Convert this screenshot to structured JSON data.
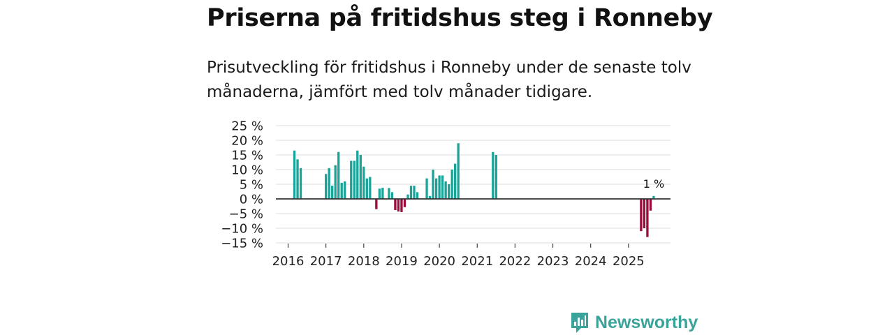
{
  "header": {
    "title": "Priserna på fritidshus steg i Ronneby",
    "subtitle": "Prisutveckling för fritidshus i Ronneby under de senaste tolv månaderna, jämfört med tolv månader tidigare."
  },
  "brand": {
    "name": "Newsworthy",
    "icon": "newsworthy-logo-icon",
    "color": "#3aa39a"
  },
  "colors": {
    "positive": "#1aa398",
    "negative": "#9c0a3e",
    "grid": "#dddddd",
    "zero_line": "#333333"
  },
  "chart_data": {
    "type": "bar",
    "title": "Priserna på fritidshus steg i Ronneby",
    "xlabel": "",
    "ylabel": "",
    "ylim": [
      -15,
      25
    ],
    "y_ticks": [
      25,
      20,
      15,
      10,
      5,
      0,
      -5,
      -10,
      -15
    ],
    "y_tick_labels": [
      "25 %",
      "20 %",
      "15 %",
      "10 %",
      "5 %",
      "0 %",
      "−5 %",
      "−10 %",
      "−15 %"
    ],
    "x_ticks": [
      2016,
      2017,
      2018,
      2019,
      2020,
      2021,
      2022,
      2023,
      2024,
      2025
    ],
    "x_tick_labels": [
      "2016",
      "2017",
      "2018",
      "2019",
      "2020",
      "2021",
      "2022",
      "2023",
      "2024",
      "2025"
    ],
    "grid": true,
    "legend": "none",
    "x_unit": "month",
    "series": [
      {
        "points": [
          {
            "x": "2016-03",
            "y": 16.5
          },
          {
            "x": "2016-04",
            "y": 13.5
          },
          {
            "x": "2016-05",
            "y": 10.5
          },
          {
            "x": "2017-01",
            "y": 8.5
          },
          {
            "x": "2017-02",
            "y": 10.5
          },
          {
            "x": "2017-03",
            "y": 4.5
          },
          {
            "x": "2017-04",
            "y": 11.5
          },
          {
            "x": "2017-05",
            "y": 16.0
          },
          {
            "x": "2017-06",
            "y": 5.5
          },
          {
            "x": "2017-07",
            "y": 6.0
          },
          {
            "x": "2017-09",
            "y": 13.0
          },
          {
            "x": "2017-10",
            "y": 13.0
          },
          {
            "x": "2017-11",
            "y": 16.5
          },
          {
            "x": "2017-12",
            "y": 15.0
          },
          {
            "x": "2018-01",
            "y": 11.0
          },
          {
            "x": "2018-02",
            "y": 7.0
          },
          {
            "x": "2018-03",
            "y": 7.5
          },
          {
            "x": "2018-05",
            "y": -3.5
          },
          {
            "x": "2018-06",
            "y": 3.5
          },
          {
            "x": "2018-07",
            "y": 3.8
          },
          {
            "x": "2018-09",
            "y": 3.7
          },
          {
            "x": "2018-10",
            "y": 2.3
          },
          {
            "x": "2018-11",
            "y": -3.8
          },
          {
            "x": "2018-12",
            "y": -4.3
          },
          {
            "x": "2019-01",
            "y": -4.5
          },
          {
            "x": "2019-02",
            "y": -2.8
          },
          {
            "x": "2019-03",
            "y": 1.5
          },
          {
            "x": "2019-04",
            "y": 4.5
          },
          {
            "x": "2019-05",
            "y": 4.5
          },
          {
            "x": "2019-06",
            "y": 2.3
          },
          {
            "x": "2019-09",
            "y": 7.0
          },
          {
            "x": "2019-10",
            "y": 1.0
          },
          {
            "x": "2019-11",
            "y": 10.0
          },
          {
            "x": "2019-12",
            "y": 7.0
          },
          {
            "x": "2020-01",
            "y": 8.0
          },
          {
            "x": "2020-02",
            "y": 8.0
          },
          {
            "x": "2020-03",
            "y": 6.0
          },
          {
            "x": "2020-04",
            "y": 5.0
          },
          {
            "x": "2020-05",
            "y": 10.0
          },
          {
            "x": "2020-06",
            "y": 12.0
          },
          {
            "x": "2020-07",
            "y": 19.0
          },
          {
            "x": "2021-06",
            "y": 16.0
          },
          {
            "x": "2021-07",
            "y": 15.0
          },
          {
            "x": "2025-05",
            "y": -11.0
          },
          {
            "x": "2025-06",
            "y": -10.0
          },
          {
            "x": "2025-07",
            "y": -13.0
          },
          {
            "x": "2025-08",
            "y": -4.0
          },
          {
            "x": "2025-09",
            "y": 1.0
          }
        ]
      }
    ],
    "annotations": [
      {
        "x": "2025-09",
        "y": 1.0,
        "text": "1 %"
      }
    ]
  }
}
